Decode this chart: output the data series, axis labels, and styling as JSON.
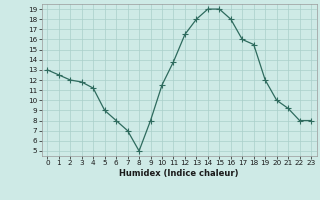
{
  "x": [
    0,
    1,
    2,
    3,
    4,
    5,
    6,
    7,
    8,
    9,
    10,
    11,
    12,
    13,
    14,
    15,
    16,
    17,
    18,
    19,
    20,
    21,
    22,
    23
  ],
  "y": [
    13,
    12.5,
    12,
    11.8,
    11.2,
    9,
    8,
    7,
    5,
    8,
    11.5,
    13.8,
    16.5,
    18,
    19,
    19,
    18,
    16,
    15.5,
    12,
    10,
    9.2,
    8,
    8
  ],
  "xlabel": "Humidex (Indice chaleur)",
  "xlim": [
    -0.5,
    23.5
  ],
  "ylim": [
    4.5,
    19.5
  ],
  "yticks": [
    5,
    6,
    7,
    8,
    9,
    10,
    11,
    12,
    13,
    14,
    15,
    16,
    17,
    18,
    19
  ],
  "xticks": [
    0,
    1,
    2,
    3,
    4,
    5,
    6,
    7,
    8,
    9,
    10,
    11,
    12,
    13,
    14,
    15,
    16,
    17,
    18,
    19,
    20,
    21,
    22,
    23
  ],
  "line_color": "#2e6b5e",
  "marker_color": "#2e6b5e",
  "bg_color": "#ceeae6",
  "grid_color": "#aacfca",
  "border_color": "#999999",
  "tick_label_color": "#1a1a1a",
  "xlabel_fontsize": 6.0,
  "tick_fontsize": 5.2,
  "linewidth": 0.9,
  "markersize": 2.0
}
